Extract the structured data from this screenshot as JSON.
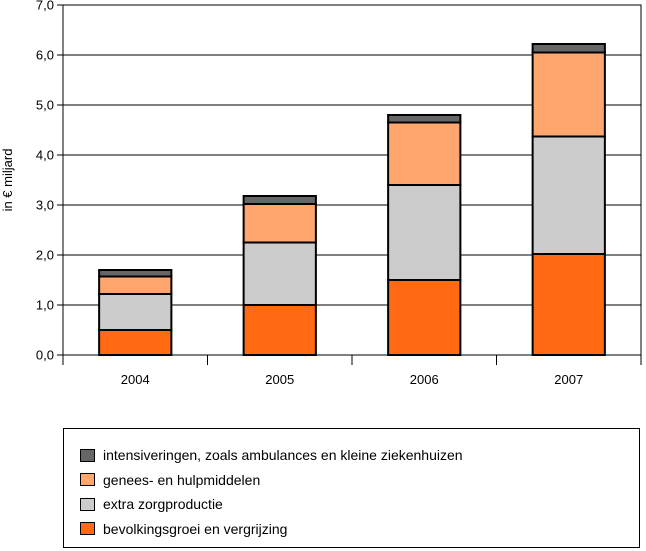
{
  "chart_data": {
    "type": "bar",
    "stacked": true,
    "title": "",
    "xlabel": "",
    "ylabel": "in € miljard",
    "ylim": [
      0,
      7
    ],
    "yticks": [
      "0,0",
      "1,0",
      "2,0",
      "3,0",
      "4,0",
      "5,0",
      "6,0",
      "7,0"
    ],
    "ytick_values": [
      0,
      1,
      2,
      3,
      4,
      5,
      6,
      7
    ],
    "grid": true,
    "categories": [
      "2004",
      "2005",
      "2006",
      "2007"
    ],
    "series": [
      {
        "name": "bevolkingsgroei en vergrijzing",
        "color": "#ff6a13",
        "values": [
          0.5,
          1.0,
          1.5,
          2.02
        ]
      },
      {
        "name": "extra zorgproductie",
        "color": "#cccccc",
        "values": [
          0.72,
          1.25,
          1.9,
          2.35
        ]
      },
      {
        "name": "genees- en hulpmiddelen",
        "color": "#ffa56e",
        "values": [
          0.35,
          0.77,
          1.25,
          1.68
        ]
      },
      {
        "name": "intensiveringen, zoals ambulances en kleine ziekenhuizen",
        "color": "#666666",
        "values": [
          0.13,
          0.16,
          0.15,
          0.17
        ]
      }
    ],
    "legend_position": "bottom"
  }
}
